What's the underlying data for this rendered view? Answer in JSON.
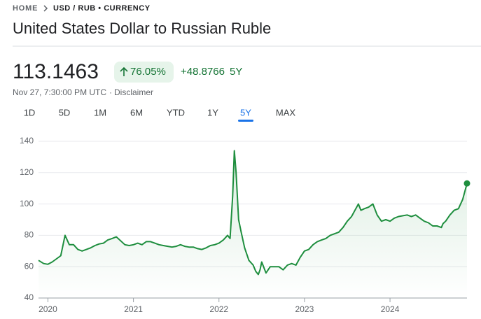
{
  "breadcrumb": {
    "home": "HOME",
    "current": "USD / RUB • CURRENCY"
  },
  "header": {
    "title": "United States Dollar to Russian Ruble"
  },
  "quote": {
    "price": "113.1463",
    "change_percent": "76.05%",
    "change": "+48.8766",
    "period": "5Y",
    "timestamp": "Nov 27, 7:30:00 PM UTC",
    "separator": "·",
    "disclaimer": "Disclaimer"
  },
  "tabs": {
    "items": [
      "1D",
      "5D",
      "1M",
      "6M",
      "YTD",
      "1Y",
      "5Y",
      "MAX"
    ],
    "active": 6
  },
  "chart_data": {
    "type": "line",
    "color": "#1e8e3e",
    "grid": true,
    "x": [
      2019.89,
      2019.95,
      2020.0,
      2020.05,
      2020.1,
      2020.15,
      2020.2,
      2020.25,
      2020.3,
      2020.35,
      2020.4,
      2020.45,
      2020.5,
      2020.55,
      2020.6,
      2020.65,
      2020.7,
      2020.75,
      2020.8,
      2020.85,
      2020.9,
      2020.95,
      2021.0,
      2021.05,
      2021.1,
      2021.15,
      2021.2,
      2021.25,
      2021.3,
      2021.35,
      2021.4,
      2021.45,
      2021.5,
      2021.55,
      2021.6,
      2021.65,
      2021.7,
      2021.75,
      2021.8,
      2021.85,
      2021.9,
      2021.95,
      2022.0,
      2022.05,
      2022.1,
      2022.13,
      2022.16,
      2022.18,
      2022.2,
      2022.23,
      2022.26,
      2022.3,
      2022.35,
      2022.4,
      2022.43,
      2022.46,
      2022.48,
      2022.5,
      2022.55,
      2022.6,
      2022.65,
      2022.7,
      2022.75,
      2022.8,
      2022.85,
      2022.9,
      2022.95,
      2023.0,
      2023.05,
      2023.1,
      2023.15,
      2023.2,
      2023.25,
      2023.3,
      2023.35,
      2023.4,
      2023.45,
      2023.5,
      2023.55,
      2023.6,
      2023.63,
      2023.66,
      2023.7,
      2023.75,
      2023.8,
      2023.85,
      2023.9,
      2023.95,
      2024.0,
      2024.05,
      2024.1,
      2024.15,
      2024.2,
      2024.25,
      2024.3,
      2024.35,
      2024.4,
      2024.45,
      2024.5,
      2024.55,
      2024.6,
      2024.62,
      2024.65,
      2024.7,
      2024.75,
      2024.8,
      2024.85,
      2024.9
    ],
    "values": [
      64,
      62,
      61.5,
      63,
      65,
      67,
      80,
      74,
      74,
      71,
      70,
      71,
      72,
      73.5,
      74.5,
      75,
      77,
      78,
      79,
      76.5,
      74,
      73.5,
      74,
      75,
      74,
      76,
      76,
      75,
      74,
      73.5,
      73,
      72.5,
      73,
      74,
      73,
      72.5,
      72.5,
      71.5,
      71,
      72,
      73.5,
      74,
      75,
      77,
      80,
      78,
      105,
      134,
      120,
      90,
      82,
      72,
      64,
      61,
      57,
      55,
      58,
      63,
      56,
      60,
      60,
      60,
      58,
      61,
      62,
      61,
      66,
      70,
      71,
      74,
      76,
      77,
      78,
      80,
      81,
      82,
      85,
      89,
      92,
      97,
      100,
      96,
      97,
      98,
      100,
      93,
      89,
      90,
      89,
      91,
      92,
      92.5,
      93,
      92,
      93,
      91,
      89,
      88,
      86,
      86,
      85,
      87.5,
      89,
      93,
      96,
      97,
      103,
      113.1463
    ],
    "xlim": [
      2019.89,
      2024.9
    ],
    "xticks": [
      2020,
      2021,
      2022,
      2023,
      2024
    ],
    "ylim": [
      40,
      140
    ],
    "yticks": [
      40,
      60,
      80,
      100,
      120,
      140
    ]
  }
}
